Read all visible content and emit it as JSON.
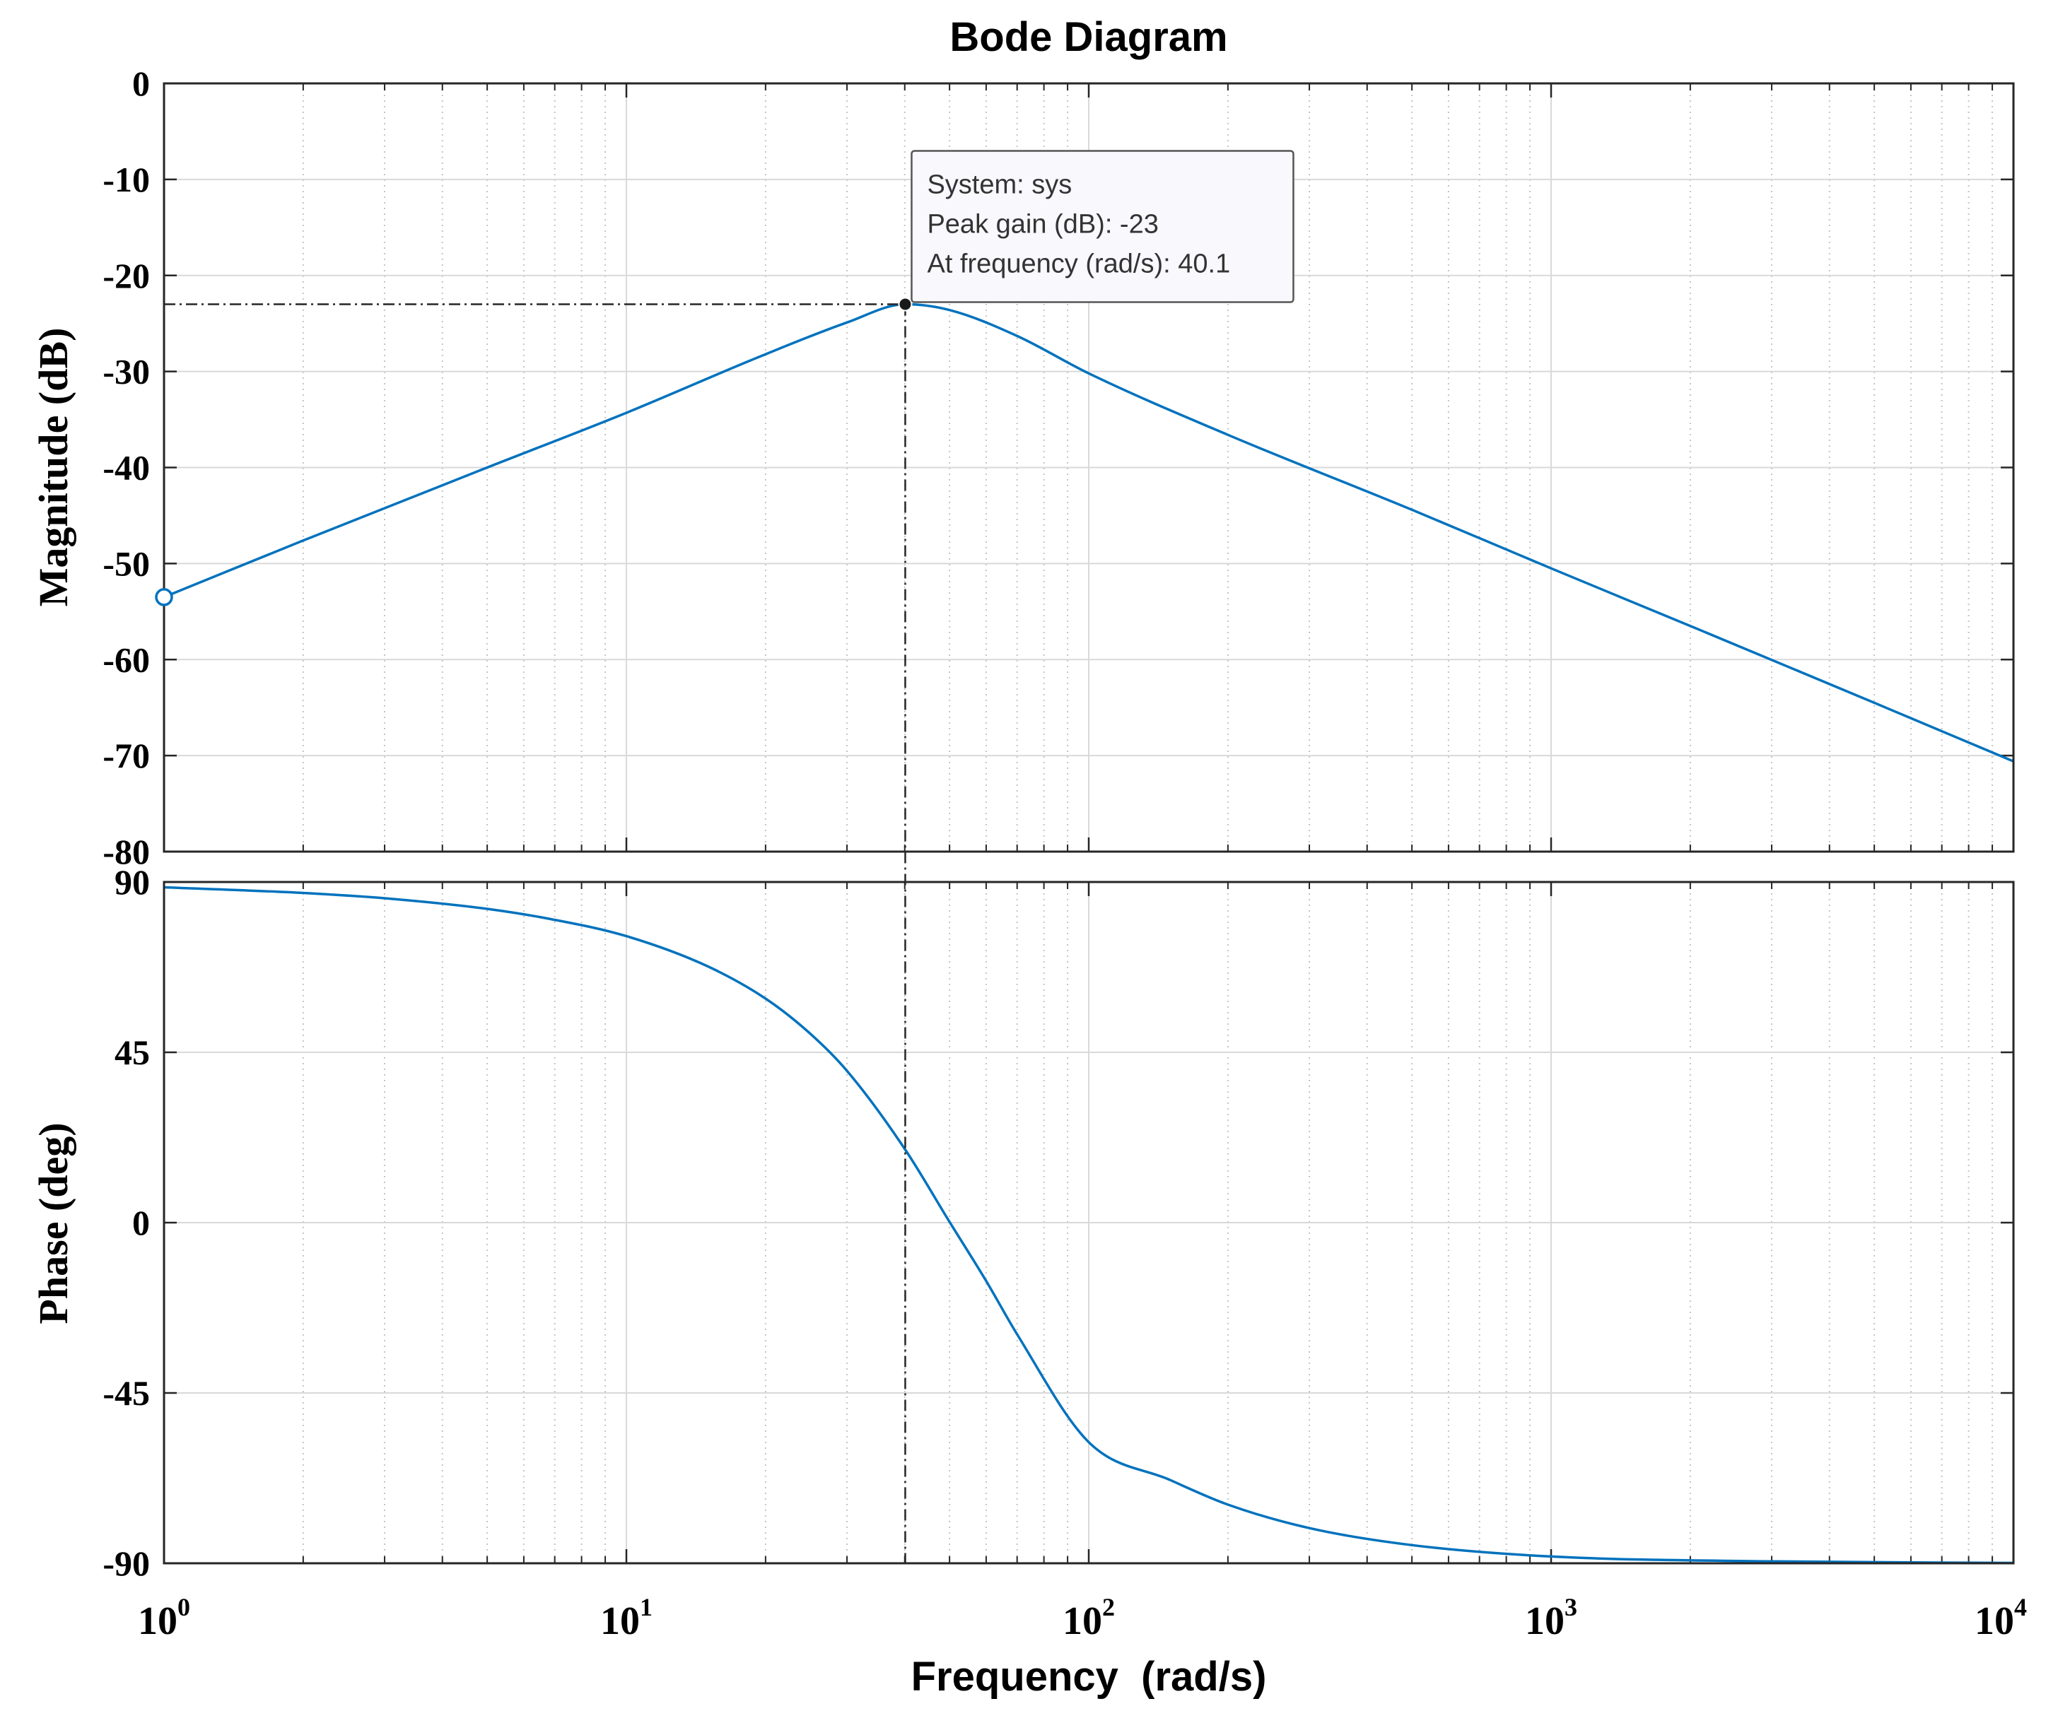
{
  "chart_data": {
    "type": "line",
    "title": "Bode Diagram",
    "xlabel": "Frequency  (rad/s)",
    "x_scale": "log",
    "xlim": [
      1,
      10000
    ],
    "x_ticks": [
      {
        "base": "10",
        "exp": "0"
      },
      {
        "base": "10",
        "exp": "1"
      },
      {
        "base": "10",
        "exp": "2"
      },
      {
        "base": "10",
        "exp": "3"
      },
      {
        "base": "10",
        "exp": "4"
      }
    ],
    "grid": true,
    "line_color": "#0072BD",
    "subplots": [
      {
        "name": "magnitude",
        "ylabel": "Magnitude (dB)",
        "ylim": [
          -80,
          0
        ],
        "yticks": [
          "0",
          "-10",
          "-20",
          "-30",
          "-40",
          "-50",
          "-60",
          "-70",
          "-80"
        ],
        "x": [
          1,
          2,
          5,
          10,
          20,
          30,
          40.1,
          50,
          70,
          100,
          200,
          500,
          1000,
          2000,
          5000,
          10000
        ],
        "y": [
          -53.5,
          -47.6,
          -40,
          -34.3,
          -28.2,
          -24.9,
          -23,
          -23.6,
          -26.3,
          -30.2,
          -36.6,
          -44.4,
          -50.5,
          -56.5,
          -64.5,
          -70.6
        ]
      },
      {
        "name": "phase",
        "ylabel": "Phase (deg)",
        "ylim": [
          -90,
          90
        ],
        "yticks": [
          "90",
          "45",
          "0",
          "-45",
          "-90"
        ],
        "x": [
          1,
          2,
          3,
          5,
          7,
          10,
          15,
          20,
          25,
          30,
          40,
          50,
          60,
          70,
          100,
          150,
          200,
          300,
          500,
          1000,
          3000,
          10000
        ],
        "y": [
          88.6,
          87.1,
          85.7,
          82.9,
          80,
          75.7,
          67.7,
          59.2,
          49.9,
          40.1,
          19.5,
          0.2,
          -15.4,
          -29.5,
          -58,
          -68,
          -74.5,
          -80.7,
          -85.2,
          -88.2,
          -89.5,
          -89.9
        ]
      }
    ],
    "datatip": {
      "line1": "System: sys",
      "line2": "Peak gain (dB): -23",
      "line3": "At frequency (rad/s): 40.1",
      "x": 40.1,
      "y": -23
    }
  }
}
